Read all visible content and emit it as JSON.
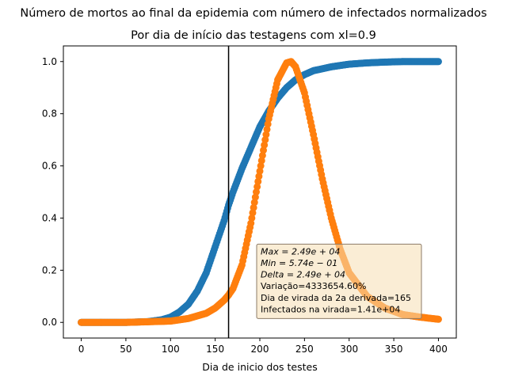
{
  "chart_data": {
    "type": "scatter",
    "title": "Número de mortos ao final da epidemia com número de infectados normalizados",
    "subtitle": "Por dia de início das testagens com xl=0.9",
    "xlabel": "Dia de inicio dos testes",
    "ylabel": "",
    "xlim": [
      -20,
      420
    ],
    "ylim": [
      -0.06,
      1.06
    ],
    "xticks": [
      0,
      50,
      100,
      150,
      200,
      250,
      300,
      350,
      400
    ],
    "yticks": [
      0.0,
      0.2,
      0.4,
      0.6,
      0.8,
      1.0
    ],
    "xtick_labels": [
      "0",
      "50",
      "100",
      "150",
      "200",
      "250",
      "300",
      "350",
      "400"
    ],
    "ytick_labels": [
      "0.0",
      "0.2",
      "0.4",
      "0.6",
      "0.8",
      "1.0"
    ],
    "grid": false,
    "vline_x": 165,
    "series": [
      {
        "color": "#1f77b4",
        "x": [
          0,
          25,
          50,
          75,
          90,
          100,
          110,
          120,
          130,
          140,
          150,
          160,
          165,
          170,
          180,
          190,
          200,
          210,
          220,
          230,
          240,
          250,
          260,
          280,
          300,
          320,
          340,
          360,
          380,
          400
        ],
        "y": [
          0.0,
          0.0,
          0.0,
          0.003,
          0.01,
          0.02,
          0.04,
          0.07,
          0.12,
          0.19,
          0.29,
          0.39,
          0.45,
          0.5,
          0.59,
          0.67,
          0.75,
          0.81,
          0.86,
          0.9,
          0.93,
          0.95,
          0.965,
          0.98,
          0.99,
          0.995,
          0.998,
          1.0,
          1.0,
          1.0
        ]
      },
      {
        "color": "#ff7f0e",
        "x": [
          0,
          50,
          100,
          120,
          140,
          150,
          160,
          165,
          170,
          180,
          190,
          200,
          210,
          220,
          230,
          235,
          240,
          250,
          260,
          270,
          280,
          290,
          300,
          320,
          340,
          360,
          380,
          400
        ],
        "y": [
          0.0,
          0.0,
          0.005,
          0.015,
          0.035,
          0.055,
          0.085,
          0.105,
          0.13,
          0.22,
          0.38,
          0.58,
          0.78,
          0.93,
          0.995,
          1.0,
          0.98,
          0.88,
          0.72,
          0.55,
          0.4,
          0.28,
          0.19,
          0.1,
          0.055,
          0.03,
          0.02,
          0.012
        ]
      }
    ],
    "annotation": {
      "lines": [
        {
          "text": "Max = 2.49e + 04",
          "math": true
        },
        {
          "text": "Min = 5.74e − 01",
          "math": true
        },
        {
          "text": "Delta = 2.49e + 04",
          "math": true
        },
        {
          "text": "Variação=4333654.60%",
          "math": false
        },
        {
          "text": "Dia de virada da 2a derivada=165",
          "math": false
        },
        {
          "text": "Infectados na virada=1.41e+04",
          "math": false
        }
      ],
      "x": 200,
      "y": 0.3,
      "bg_color": "#f5deb3",
      "edge_color": "#8c7b68"
    }
  }
}
